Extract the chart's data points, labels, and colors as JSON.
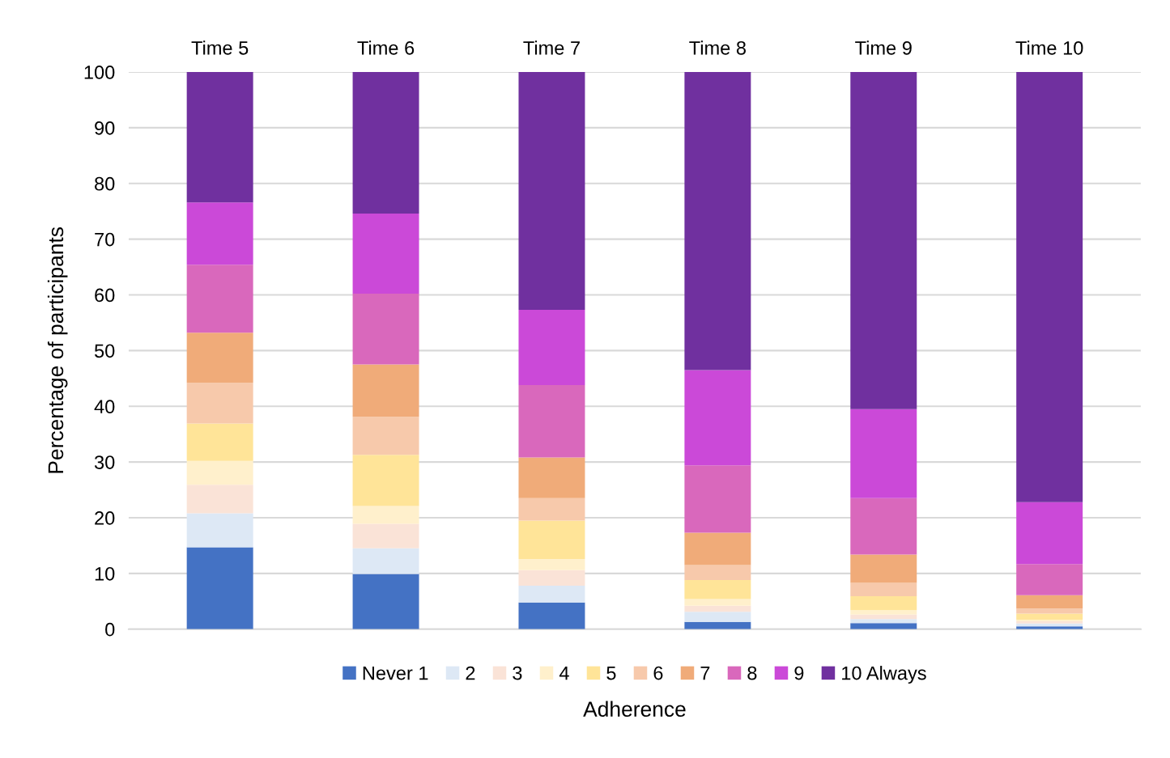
{
  "chart_data": {
    "type": "bar",
    "stacked": true,
    "xlabel": "Adherence",
    "ylabel": "Percentage of participants",
    "categories": [
      "Time 5",
      "Time 6",
      "Time 7",
      "Time 8",
      "Time 9",
      "Time 10"
    ],
    "ylim": [
      0,
      100
    ],
    "yticks": [
      0,
      10,
      20,
      30,
      40,
      50,
      60,
      70,
      80,
      90,
      100
    ],
    "grid": "y",
    "legend": "bottom",
    "series": [
      {
        "name": "Never 1",
        "color": "#4472c4",
        "values": [
          14.7,
          9.9,
          4.8,
          1.3,
          1.1,
          0.5
        ]
      },
      {
        "name": "2",
        "color": "#dde8f5",
        "values": [
          6.1,
          4.6,
          3.0,
          1.8,
          0.7,
          0.5
        ]
      },
      {
        "name": "3",
        "color": "#fae3d7",
        "values": [
          5.1,
          4.4,
          2.8,
          1.1,
          0.8,
          0.4
        ]
      },
      {
        "name": "4",
        "color": "#fff0cc",
        "values": [
          4.3,
          3.2,
          2.0,
          1.2,
          0.8,
          0.3
        ]
      },
      {
        "name": "5",
        "color": "#ffe498",
        "values": [
          6.7,
          9.2,
          6.9,
          3.4,
          2.5,
          1.1
        ]
      },
      {
        "name": "6",
        "color": "#f7c9ab",
        "values": [
          7.3,
          6.8,
          4.0,
          2.7,
          2.4,
          0.9
        ]
      },
      {
        "name": "7",
        "color": "#f0ab79",
        "values": [
          9.0,
          9.4,
          7.3,
          5.8,
          5.1,
          2.4
        ]
      },
      {
        "name": "8",
        "color": "#d968bc",
        "values": [
          12.2,
          12.7,
          13.0,
          12.1,
          10.1,
          5.6
        ]
      },
      {
        "name": "9",
        "color": "#cb49d8",
        "values": [
          11.2,
          14.4,
          13.5,
          17.1,
          16.0,
          11.1
        ]
      },
      {
        "name": "10 Always",
        "color": "#70309f",
        "values": [
          23.4,
          25.4,
          42.7,
          53.5,
          60.5,
          77.2
        ]
      }
    ]
  }
}
